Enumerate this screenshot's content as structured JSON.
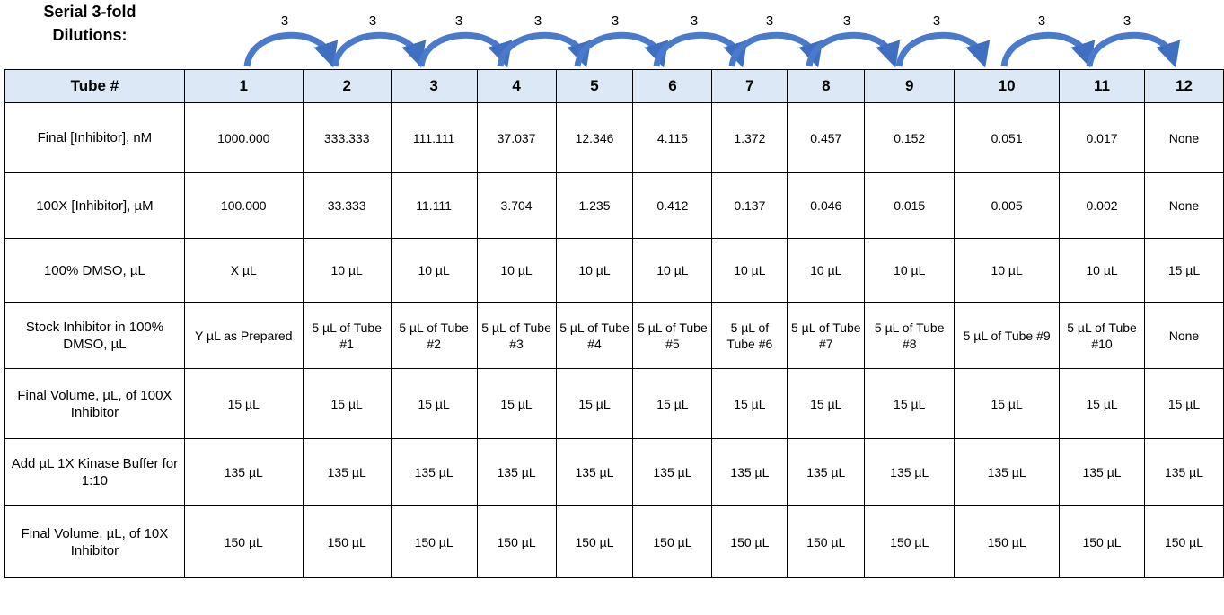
{
  "title": "Serial 3-fold Dilutions:",
  "dilution_factors": [
    "3",
    "3",
    "3",
    "3",
    "3",
    "3",
    "3",
    "3",
    "3",
    "3",
    "3"
  ],
  "table": {
    "header": [
      "Tube #",
      "1",
      "2",
      "3",
      "4",
      "5",
      "6",
      "7",
      "8",
      "9",
      "10",
      "11",
      "12"
    ],
    "rows": [
      [
        "Final [Inhibitor], nM",
        "1000.000",
        "333.333",
        "111.111",
        "37.037",
        "12.346",
        "4.115",
        "1.372",
        "0.457",
        "0.152",
        "0.051",
        "0.017",
        "None"
      ],
      [
        "100X [Inhibitor], µM",
        "100.000",
        "33.333",
        "11.111",
        "3.704",
        "1.235",
        "0.412",
        "0.137",
        "0.046",
        "0.015",
        "0.005",
        "0.002",
        "None"
      ],
      [
        "100% DMSO, µL",
        "X µL",
        "10 µL",
        "10 µL",
        "10 µL",
        "10 µL",
        "10 µL",
        "10 µL",
        "10 µL",
        "10 µL",
        "10 µL",
        "10 µL",
        "15 µL"
      ],
      [
        "Stock Inhibitor in 100% DMSO, µL",
        "Y µL as Prepared",
        "5 µL of Tube #1",
        "5 µL of Tube #2",
        "5 µL of Tube #3",
        "5 µL of Tube #4",
        "5 µL of Tube #5",
        "5 µL of Tube #6",
        "5 µL of Tube #7",
        "5 µL of Tube #8",
        "5 µL of Tube #9",
        "5 µL of Tube #10",
        "None"
      ],
      [
        "Final Volume, µL, of 100X Inhibitor",
        "15 µL",
        "15 µL",
        "15 µL",
        "15 µL",
        "15 µL",
        "15 µL",
        "15 µL",
        "15 µL",
        "15 µL",
        "15 µL",
        "15 µL",
        "15 µL"
      ],
      [
        "Add µL 1X Kinase Buffer for 1:10",
        "135 µL",
        "135 µL",
        "135 µL",
        "135 µL",
        "135 µL",
        "135 µL",
        "135 µL",
        "135 µL",
        "135 µL",
        "135 µL",
        "135 µL",
        "135 µL"
      ],
      [
        "Final Volume, µL, of 10X Inhibitor",
        "150 µL",
        "150 µL",
        "150 µL",
        "150 µL",
        "150 µL",
        "150 µL",
        "150 µL",
        "150 µL",
        "150 µL",
        "150 µL",
        "150 µL",
        "150 µL"
      ]
    ]
  }
}
